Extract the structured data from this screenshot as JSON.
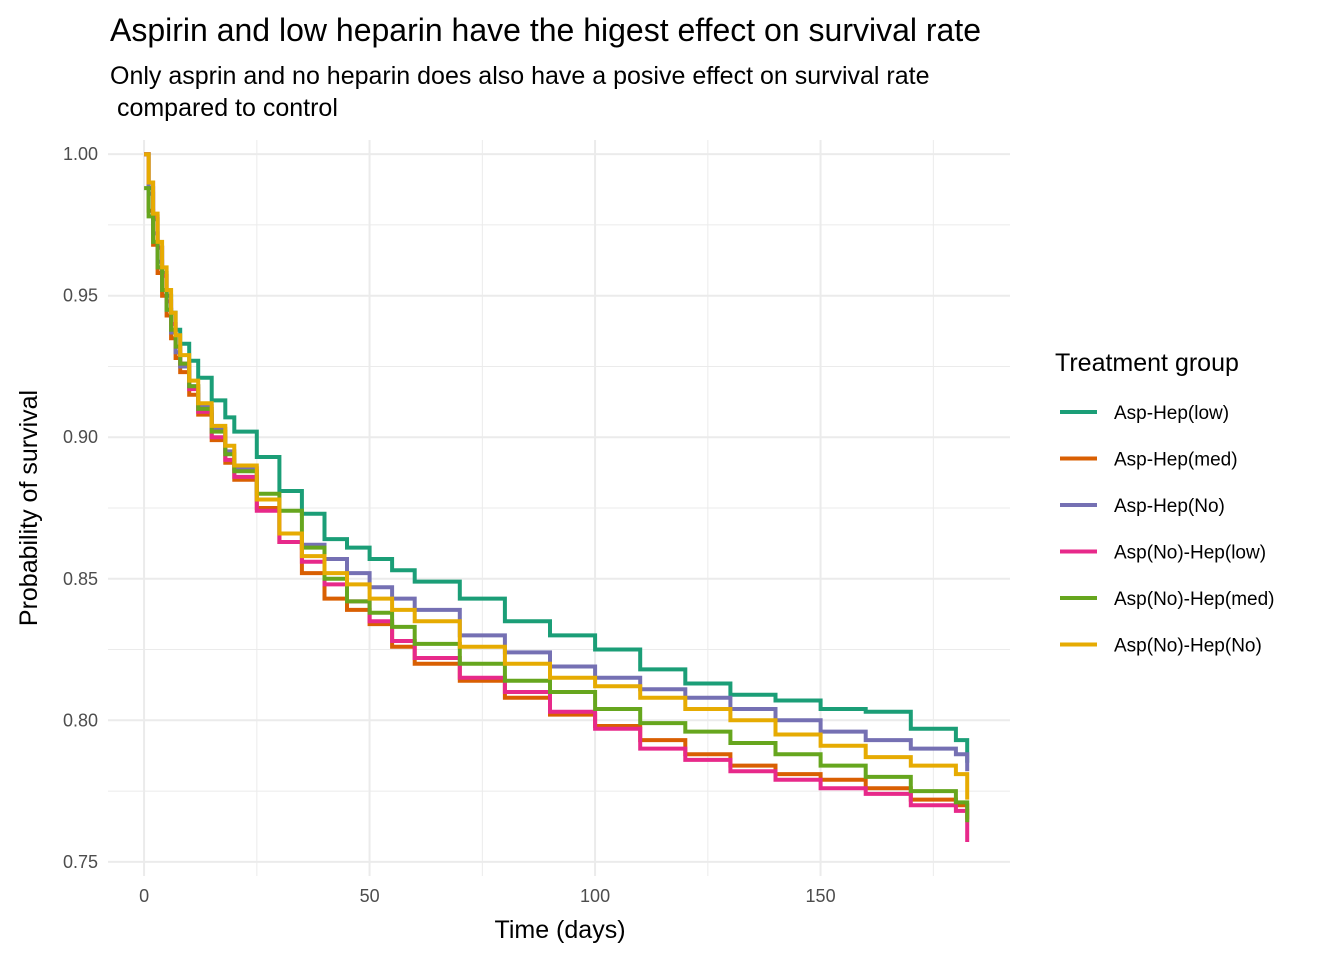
{
  "chart_data": {
    "type": "line",
    "title": "Aspirin and low heparin have the higest effect on survival rate",
    "subtitle": "Only asprin and no heparin does also have a posive effect on survival rate\n compared to control",
    "xlabel": "Time (days)",
    "ylabel": "Probability of survival",
    "xlim": [
      -8,
      192
    ],
    "ylim": [
      0.745,
      1.005
    ],
    "x_ticks": [
      0,
      50,
      100,
      150
    ],
    "x_tick_labels": [
      "0",
      "50",
      "100",
      "150"
    ],
    "y_ticks": [
      0.75,
      0.8,
      0.85,
      0.9,
      0.95,
      1.0
    ],
    "y_tick_labels": [
      "0.75",
      "0.80",
      "0.85",
      "0.90",
      "0.95",
      "1.00"
    ],
    "grid": true,
    "legend": {
      "title": "Treatment group",
      "position": "right"
    },
    "series": [
      {
        "name": "Asp-Hep(low)",
        "color": "#1b9e77",
        "x": [
          0,
          1,
          2,
          3,
          4,
          5,
          6,
          7,
          8,
          10,
          12,
          15,
          18,
          20,
          25,
          30,
          35,
          40,
          45,
          50,
          55,
          60,
          70,
          80,
          90,
          100,
          110,
          120,
          130,
          140,
          150,
          160,
          170,
          180,
          182.5,
          182.5
        ],
        "y": [
          1.0,
          0.988,
          0.977,
          0.967,
          0.958,
          0.95,
          0.944,
          0.938,
          0.933,
          0.927,
          0.921,
          0.913,
          0.907,
          0.902,
          0.893,
          0.881,
          0.873,
          0.864,
          0.861,
          0.857,
          0.853,
          0.849,
          0.843,
          0.835,
          0.83,
          0.825,
          0.818,
          0.813,
          0.809,
          0.807,
          0.804,
          0.803,
          0.797,
          0.793,
          0.791,
          0.785
        ]
      },
      {
        "name": "Asp-Hep(med)",
        "color": "#d95f02",
        "x": [
          0,
          1,
          2,
          3,
          4,
          5,
          6,
          7,
          8,
          10,
          12,
          15,
          18,
          20,
          25,
          30,
          35,
          40,
          45,
          50,
          55,
          60,
          70,
          80,
          90,
          100,
          110,
          120,
          130,
          140,
          150,
          160,
          170,
          180,
          182.5,
          182.5
        ],
        "y": [
          1.0,
          0.98,
          0.968,
          0.958,
          0.95,
          0.943,
          0.935,
          0.928,
          0.923,
          0.915,
          0.908,
          0.899,
          0.891,
          0.885,
          0.875,
          0.863,
          0.852,
          0.843,
          0.839,
          0.834,
          0.826,
          0.82,
          0.814,
          0.808,
          0.802,
          0.798,
          0.793,
          0.788,
          0.784,
          0.781,
          0.779,
          0.776,
          0.772,
          0.77,
          0.769,
          0.765
        ]
      },
      {
        "name": "Asp-Hep(No)",
        "color": "#7570b3",
        "x": [
          0,
          1,
          2,
          3,
          4,
          5,
          6,
          7,
          8,
          10,
          12,
          15,
          18,
          20,
          25,
          30,
          35,
          40,
          45,
          50,
          55,
          60,
          70,
          80,
          90,
          100,
          110,
          120,
          130,
          140,
          150,
          160,
          170,
          180,
          182.5,
          182.5
        ],
        "y": [
          1.0,
          0.986,
          0.972,
          0.962,
          0.952,
          0.945,
          0.937,
          0.93,
          0.925,
          0.918,
          0.911,
          0.903,
          0.895,
          0.889,
          0.878,
          0.866,
          0.862,
          0.857,
          0.852,
          0.847,
          0.843,
          0.839,
          0.83,
          0.824,
          0.819,
          0.815,
          0.811,
          0.808,
          0.804,
          0.8,
          0.796,
          0.793,
          0.79,
          0.788,
          0.788,
          0.782
        ]
      },
      {
        "name": "Asp(No)-Hep(low)",
        "color": "#e7298a",
        "x": [
          0,
          1,
          2,
          3,
          4,
          5,
          6,
          7,
          8,
          10,
          12,
          15,
          18,
          20,
          25,
          30,
          35,
          40,
          45,
          50,
          55,
          60,
          70,
          80,
          90,
          100,
          110,
          120,
          130,
          140,
          150,
          160,
          170,
          180,
          182.5,
          182.5
        ],
        "y": [
          1.0,
          0.99,
          0.978,
          0.967,
          0.957,
          0.948,
          0.94,
          0.932,
          0.926,
          0.917,
          0.909,
          0.9,
          0.892,
          0.886,
          0.874,
          0.863,
          0.856,
          0.848,
          0.842,
          0.835,
          0.828,
          0.822,
          0.815,
          0.81,
          0.803,
          0.797,
          0.79,
          0.786,
          0.782,
          0.779,
          0.776,
          0.774,
          0.77,
          0.768,
          0.766,
          0.757
        ]
      },
      {
        "name": "Asp(No)-Hep(med)",
        "color": "#66a61e",
        "x": [
          0,
          1,
          2,
          3,
          4,
          5,
          6,
          7,
          8,
          10,
          12,
          15,
          18,
          20,
          25,
          30,
          35,
          40,
          45,
          50,
          55,
          60,
          70,
          80,
          90,
          100,
          110,
          120,
          130,
          140,
          150,
          160,
          170,
          180,
          182.5,
          182.5
        ],
        "y": [
          0.988,
          0.978,
          0.969,
          0.96,
          0.952,
          0.945,
          0.938,
          0.932,
          0.926,
          0.918,
          0.91,
          0.902,
          0.894,
          0.888,
          0.88,
          0.874,
          0.861,
          0.85,
          0.842,
          0.838,
          0.833,
          0.827,
          0.82,
          0.814,
          0.81,
          0.804,
          0.799,
          0.796,
          0.792,
          0.788,
          0.784,
          0.78,
          0.775,
          0.771,
          0.77,
          0.764
        ]
      },
      {
        "name": "Asp(No)-Hep(No)",
        "color": "#e6ab02",
        "x": [
          0,
          1,
          2,
          3,
          4,
          5,
          6,
          7,
          8,
          10,
          12,
          15,
          18,
          20,
          25,
          30,
          35,
          40,
          45,
          50,
          55,
          60,
          70,
          80,
          90,
          100,
          110,
          120,
          130,
          140,
          150,
          160,
          170,
          180,
          182.5,
          182.5
        ],
        "y": [
          1.0,
          0.99,
          0.979,
          0.969,
          0.96,
          0.952,
          0.944,
          0.936,
          0.929,
          0.92,
          0.912,
          0.904,
          0.897,
          0.89,
          0.878,
          0.866,
          0.858,
          0.852,
          0.848,
          0.843,
          0.839,
          0.835,
          0.826,
          0.82,
          0.815,
          0.812,
          0.808,
          0.804,
          0.8,
          0.795,
          0.791,
          0.787,
          0.784,
          0.781,
          0.78,
          0.772
        ]
      }
    ]
  }
}
